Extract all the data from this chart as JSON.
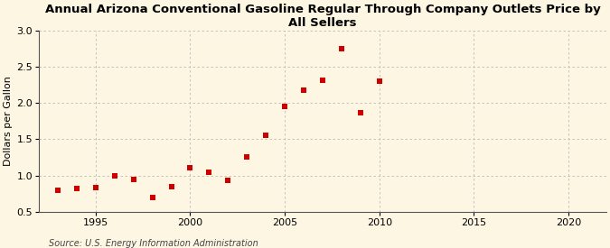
{
  "title": "Annual Arizona Conventional Gasoline Regular Through Company Outlets Price by All Sellers",
  "ylabel": "Dollars per Gallon",
  "source": "Source: U.S. Energy Information Administration",
  "background_color": "#fdf6e3",
  "plot_bg_color": "#fdf6e3",
  "years": [
    1993,
    1994,
    1995,
    1996,
    1997,
    1998,
    1999,
    2000,
    2001,
    2002,
    2003,
    2004,
    2005,
    2006,
    2007,
    2008,
    2009,
    2010
  ],
  "values": [
    0.79,
    0.82,
    0.83,
    0.99,
    0.94,
    0.69,
    0.84,
    1.11,
    1.05,
    0.93,
    1.26,
    1.55,
    1.96,
    2.18,
    2.31,
    2.75,
    1.87,
    2.3
  ],
  "marker_color": "#cc0000",
  "marker": "s",
  "marker_size": 5,
  "xlim": [
    1992,
    2022
  ],
  "ylim": [
    0.5,
    3.0
  ],
  "yticks": [
    0.5,
    1.0,
    1.5,
    2.0,
    2.5,
    3.0
  ],
  "xticks": [
    1995,
    2000,
    2005,
    2010,
    2015,
    2020
  ],
  "grid_color": "#bbbbbb",
  "title_fontsize": 9.5,
  "axis_label_fontsize": 8,
  "tick_fontsize": 8,
  "source_fontsize": 7
}
